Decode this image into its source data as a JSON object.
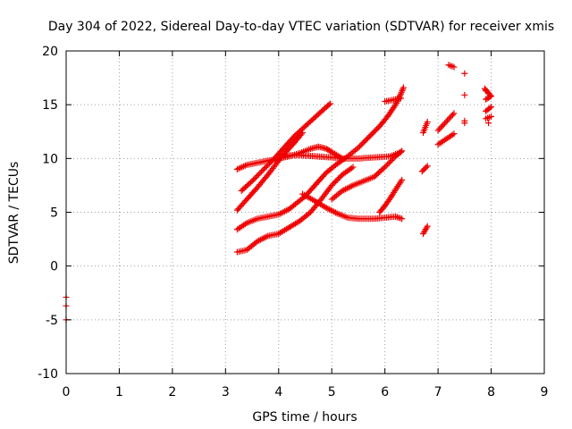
{
  "chart_data": {
    "type": "scatter",
    "title": "Day 304 of 2022, Sidereal Day-to-day VTEC variation (SDTVAR) for receiver xmis",
    "xlabel": "GPS time / hours",
    "ylabel": "SDTVAR / TECUs",
    "xlim": [
      0,
      9
    ],
    "ylim": [
      -10,
      20
    ],
    "x_ticks": [
      "0",
      "1",
      "2",
      "3",
      "4",
      "5",
      "6",
      "7",
      "8",
      "9"
    ],
    "y_ticks": [
      "-10",
      "-5",
      "0",
      "5",
      "10",
      "15",
      "20"
    ],
    "x_tick_values": [
      0,
      1,
      2,
      3,
      4,
      5,
      6,
      7,
      8,
      9
    ],
    "y_tick_values": [
      -10,
      -5,
      0,
      5,
      10,
      15,
      20
    ],
    "grid": true,
    "marker": "plus",
    "color": "#ee0000",
    "series": [
      {
        "segments": [
          [
            [
              3.22,
              9.0
            ],
            [
              3.4,
              9.4
            ],
            [
              3.6,
              9.6
            ],
            [
              3.8,
              9.8
            ],
            [
              4.0,
              10.0
            ],
            [
              4.2,
              10.2
            ],
            [
              4.4,
              10.5
            ],
            [
              4.6,
              10.9
            ],
            [
              4.75,
              11.1
            ],
            [
              4.9,
              10.9
            ],
            [
              5.0,
              10.6
            ],
            [
              5.2,
              10.0
            ]
          ],
          [
            [
              4.0,
              10.0
            ],
            [
              4.2,
              10.3
            ],
            [
              4.4,
              10.3
            ],
            [
              4.7,
              10.2
            ],
            [
              5.0,
              10.1
            ],
            [
              5.2,
              10.0
            ],
            [
              5.5,
              10.0
            ],
            [
              5.8,
              10.1
            ],
            [
              6.1,
              10.2
            ],
            [
              6.3,
              10.6
            ]
          ],
          [
            [
              4.45,
              6.7
            ],
            [
              4.7,
              6.0
            ],
            [
              4.9,
              5.4
            ],
            [
              5.1,
              4.9
            ],
            [
              5.3,
              4.5
            ],
            [
              5.5,
              4.4
            ],
            [
              5.8,
              4.4
            ],
            [
              6.0,
              4.5
            ],
            [
              6.2,
              4.6
            ],
            [
              6.32,
              4.4
            ]
          ],
          [
            [
              3.22,
              5.2
            ],
            [
              3.4,
              6.2
            ],
            [
              3.6,
              7.3
            ],
            [
              3.8,
              8.5
            ],
            [
              4.0,
              9.8
            ],
            [
              4.1,
              10.4
            ]
          ],
          [
            [
              4.1,
              10.4
            ],
            [
              4.3,
              11.5
            ],
            [
              4.45,
              12.4
            ]
          ],
          [
            [
              3.3,
              7.0
            ],
            [
              3.5,
              7.9
            ],
            [
              3.7,
              8.9
            ],
            [
              3.9,
              9.9
            ],
            [
              4.1,
              11.0
            ],
            [
              4.3,
              12.1
            ],
            [
              4.5,
              13.0
            ],
            [
              4.7,
              13.9
            ],
            [
              4.9,
              14.8
            ],
            [
              4.97,
              15.1
            ]
          ],
          [
            [
              3.22,
              3.4
            ],
            [
              3.4,
              4.0
            ],
            [
              3.6,
              4.4
            ],
            [
              3.8,
              4.6
            ],
            [
              4.0,
              4.8
            ],
            [
              4.2,
              5.3
            ],
            [
              4.4,
              6.1
            ],
            [
              4.5,
              6.5
            ]
          ],
          [
            [
              4.5,
              6.5
            ],
            [
              4.7,
              7.6
            ],
            [
              4.9,
              8.7
            ],
            [
              5.1,
              9.5
            ],
            [
              5.3,
              10.2
            ],
            [
              5.5,
              11.0
            ],
            [
              5.7,
              12.0
            ],
            [
              5.9,
              13.0
            ],
            [
              6.05,
              13.9
            ],
            [
              6.2,
              15.0
            ],
            [
              6.3,
              16.0
            ],
            [
              6.35,
              16.6
            ]
          ],
          [
            [
              3.22,
              1.3
            ],
            [
              3.4,
              1.5
            ],
            [
              3.6,
              2.3
            ],
            [
              3.8,
              2.8
            ],
            [
              4.0,
              3.0
            ],
            [
              4.2,
              3.6
            ],
            [
              4.4,
              4.2
            ],
            [
              4.6,
              5.0
            ],
            [
              4.8,
              6.2
            ],
            [
              5.0,
              7.5
            ],
            [
              5.2,
              8.5
            ],
            [
              5.4,
              9.2
            ]
          ],
          [
            [
              5.0,
              6.2
            ],
            [
              5.2,
              7.0
            ],
            [
              5.4,
              7.5
            ],
            [
              5.6,
              7.9
            ],
            [
              5.8,
              8.3
            ],
            [
              6.0,
              9.2
            ],
            [
              6.2,
              10.2
            ],
            [
              6.32,
              10.7
            ]
          ],
          [
            [
              5.9,
              5.0
            ],
            [
              6.0,
              5.6
            ],
            [
              6.1,
              6.3
            ],
            [
              6.2,
              7.1
            ],
            [
              6.32,
              8.0
            ]
          ],
          [
            [
              6.0,
              15.3
            ],
            [
              6.2,
              15.5
            ],
            [
              6.3,
              15.6
            ]
          ],
          [
            [
              6.7,
              8.8
            ],
            [
              6.8,
              9.3
            ]
          ],
          [
            [
              6.72,
              3.0
            ],
            [
              6.8,
              3.7
            ]
          ],
          [
            [
              6.72,
              12.4
            ],
            [
              6.8,
              13.4
            ]
          ],
          [
            [
              7.0,
              11.3
            ],
            [
              7.15,
              11.8
            ],
            [
              7.3,
              12.3
            ]
          ],
          [
            [
              7.0,
              12.6
            ],
            [
              7.15,
              13.4
            ],
            [
              7.3,
              14.2
            ]
          ],
          [
            [
              7.2,
              18.7
            ],
            [
              7.3,
              18.5
            ]
          ],
          [
            [
              7.9,
              13.7
            ],
            [
              8.0,
              13.9
            ]
          ],
          [
            [
              7.9,
              14.4
            ],
            [
              8.0,
              14.8
            ]
          ],
          [
            [
              7.9,
              15.5
            ],
            [
              8.0,
              15.8
            ]
          ],
          [
            [
              7.88,
              16.5
            ],
            [
              7.98,
              15.9
            ]
          ]
        ],
        "points": [
          [
            7.5,
            17.9
          ],
          [
            7.5,
            15.9
          ],
          [
            7.5,
            13.5
          ],
          [
            7.5,
            13.3
          ],
          [
            7.9,
            16.3
          ],
          [
            7.95,
            13.3
          ],
          [
            0.0,
            -2.9
          ],
          [
            0.0,
            -3.7
          ],
          [
            0.0,
            -5.0
          ]
        ]
      }
    ]
  }
}
